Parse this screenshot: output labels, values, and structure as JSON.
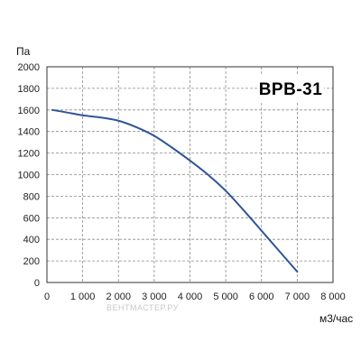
{
  "chart_data": {
    "type": "line",
    "title": "ВРВ-31",
    "ylabel": "Па",
    "xlabel": "м3/час",
    "xlim": [
      0,
      8000
    ],
    "ylim": [
      0,
      2000
    ],
    "x_ticks": [
      0,
      1000,
      2000,
      3000,
      4000,
      5000,
      6000,
      7000,
      8000
    ],
    "x_tick_labels": [
      "0",
      "1 000",
      "2 000",
      "3 000",
      "4 000",
      "5 000",
      "6 000",
      "7 000",
      "8 000"
    ],
    "y_ticks": [
      0,
      200,
      400,
      600,
      800,
      1000,
      1200,
      1400,
      1600,
      1800,
      2000
    ],
    "y_tick_labels": [
      "0",
      "200",
      "400",
      "600",
      "800",
      "1000",
      "1200",
      "1400",
      "1600",
      "1800",
      "2000"
    ],
    "grid": true,
    "series": [
      {
        "color": "#2f5596",
        "x": [
          150,
          500,
          1000,
          1500,
          2000,
          2500,
          3000,
          3500,
          4000,
          4500,
          5000,
          5500,
          6000,
          6500,
          7000
        ],
        "y": [
          1600,
          1580,
          1550,
          1530,
          1500,
          1440,
          1360,
          1250,
          1130,
          1000,
          850,
          670,
          480,
          290,
          100
        ]
      }
    ],
    "watermark": "ВЕНТМАСТЕР.РУ"
  }
}
